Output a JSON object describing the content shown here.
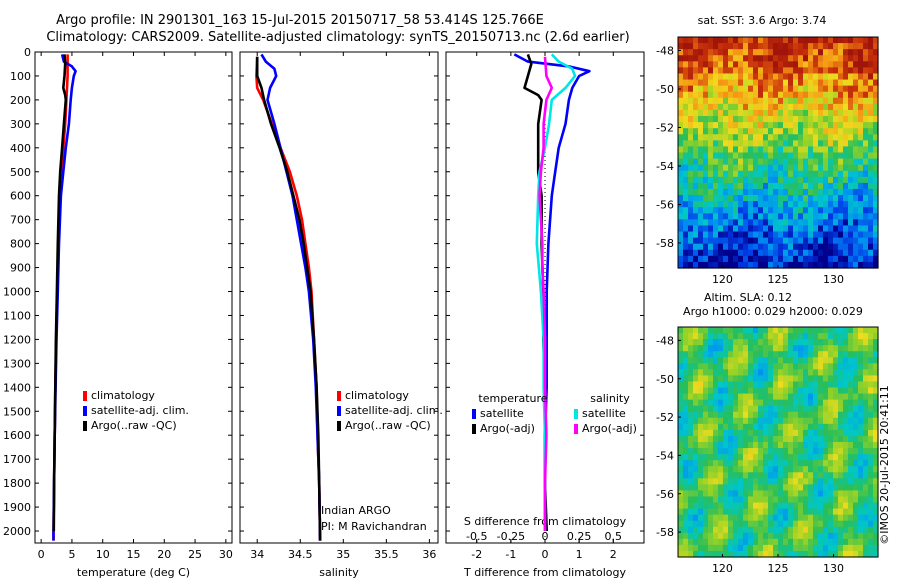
{
  "header": {
    "line1": "Argo profile: IN 2901301_163 15-Jul-2015 20150717_58 53.414S 125.766E",
    "line2": "Climatology: CARS2009. Satellite-adjusted climatology: synTS_20150713.nc (2.6d earlier)"
  },
  "colors": {
    "climatology": "#ff0000",
    "satellite": "#0000ff",
    "argo": "#000000",
    "salinity_satellite": "#00e6e6",
    "salinity_argo": "#ff00ff"
  },
  "chart_data": [
    {
      "type": "line",
      "panel": "temperature",
      "xlabel": "temperature (deg C)",
      "xlim": [
        -1,
        31
      ],
      "xticks": [
        "0",
        "5",
        "10",
        "15",
        "20",
        "25",
        "30"
      ],
      "ylim": [
        0,
        2050
      ],
      "yticks": [
        "0",
        "100",
        "200",
        "300",
        "400",
        "500",
        "600",
        "700",
        "800",
        "900",
        "1000",
        "1100",
        "1200",
        "1300",
        "1400",
        "1500",
        "1600",
        "1700",
        "1800",
        "1900",
        "2000"
      ],
      "legend": [
        "climatology",
        "satellite-adj. clim.",
        "Argo(..raw -QC)"
      ],
      "series": [
        {
          "name": "climatology",
          "points": [
            [
              4.3,
              10
            ],
            [
              4.3,
              50
            ],
            [
              4.3,
              100
            ],
            [
              4.2,
              150
            ],
            [
              4.1,
              200
            ],
            [
              3.9,
              300
            ],
            [
              3.6,
              400
            ],
            [
              3.3,
              500
            ],
            [
              3.0,
              600
            ],
            [
              2.8,
              800
            ],
            [
              2.6,
              1000
            ],
            [
              2.45,
              1200
            ],
            [
              2.3,
              1400
            ],
            [
              2.2,
              1600
            ],
            [
              2.1,
              1800
            ],
            [
              2.0,
              2000
            ],
            [
              2.0,
              2040
            ]
          ]
        },
        {
          "name": "satellite-adj. clim.",
          "points": [
            [
              3.4,
              10
            ],
            [
              3.7,
              40
            ],
            [
              5.0,
              60
            ],
            [
              5.6,
              80
            ],
            [
              5.3,
              100
            ],
            [
              5.0,
              150
            ],
            [
              4.8,
              200
            ],
            [
              4.5,
              300
            ],
            [
              4.0,
              400
            ],
            [
              3.6,
              500
            ],
            [
              3.2,
              600
            ],
            [
              2.9,
              800
            ],
            [
              2.7,
              1000
            ],
            [
              2.5,
              1200
            ],
            [
              2.35,
              1400
            ],
            [
              2.2,
              1600
            ],
            [
              2.1,
              1800
            ],
            [
              2.0,
              2000
            ],
            [
              2.0,
              2040
            ]
          ]
        },
        {
          "name": "Argo(..raw -QC)",
          "points": [
            [
              3.8,
              10
            ],
            [
              3.9,
              50
            ],
            [
              3.8,
              100
            ],
            [
              3.6,
              150
            ],
            [
              3.9,
              180
            ],
            [
              4.0,
              200
            ],
            [
              3.7,
              300
            ],
            [
              3.4,
              400
            ],
            [
              3.1,
              500
            ],
            [
              2.9,
              600
            ],
            [
              2.7,
              800
            ],
            [
              2.55,
              1000
            ],
            [
              2.4,
              1200
            ],
            [
              2.3,
              1400
            ],
            [
              2.2,
              1600
            ],
            [
              2.1,
              1800
            ],
            [
              2.05,
              2000
            ]
          ]
        }
      ]
    },
    {
      "type": "line",
      "panel": "salinity",
      "xlabel": "salinity",
      "xlim": [
        33.8,
        36.1
      ],
      "xticks": [
        "34",
        "34.5",
        "35",
        "35.5",
        "36"
      ],
      "ylim": [
        0,
        2050
      ],
      "legend": [
        "climatology",
        "satellite-adj. clim.",
        "Argo(..raw -QC)"
      ],
      "note": [
        "Indian ARGO",
        "PI: M Ravichandran"
      ],
      "series": [
        {
          "name": "climatology",
          "points": [
            [
              34.0,
              20
            ],
            [
              33.99,
              100
            ],
            [
              34.0,
              150
            ],
            [
              34.07,
              200
            ],
            [
              34.17,
              300
            ],
            [
              34.27,
              400
            ],
            [
              34.38,
              500
            ],
            [
              34.46,
              600
            ],
            [
              34.52,
              700
            ],
            [
              34.56,
              800
            ],
            [
              34.6,
              900
            ],
            [
              34.63,
              1000
            ],
            [
              34.66,
              1200
            ],
            [
              34.69,
              1400
            ],
            [
              34.7,
              1600
            ],
            [
              34.72,
              1800
            ],
            [
              34.73,
              2040
            ]
          ]
        },
        {
          "name": "satellite-adj. clim.",
          "points": [
            [
              34.05,
              10
            ],
            [
              34.1,
              40
            ],
            [
              34.2,
              70
            ],
            [
              34.22,
              100
            ],
            [
              34.15,
              150
            ],
            [
              34.12,
              200
            ],
            [
              34.2,
              300
            ],
            [
              34.27,
              400
            ],
            [
              34.34,
              500
            ],
            [
              34.41,
              600
            ],
            [
              34.46,
              700
            ],
            [
              34.51,
              800
            ],
            [
              34.56,
              900
            ],
            [
              34.6,
              1000
            ],
            [
              34.65,
              1200
            ],
            [
              34.68,
              1400
            ],
            [
              34.7,
              1600
            ],
            [
              34.72,
              1800
            ],
            [
              34.73,
              2040
            ]
          ]
        },
        {
          "name": "Argo(..raw -QC)",
          "points": [
            [
              34.0,
              20
            ],
            [
              34.0,
              100
            ],
            [
              34.05,
              150
            ],
            [
              34.08,
              200
            ],
            [
              34.16,
              300
            ],
            [
              34.26,
              400
            ],
            [
              34.35,
              500
            ],
            [
              34.42,
              600
            ],
            [
              34.49,
              700
            ],
            [
              34.54,
              800
            ],
            [
              34.58,
              900
            ],
            [
              34.62,
              1000
            ],
            [
              34.66,
              1200
            ],
            [
              34.69,
              1400
            ],
            [
              34.71,
              1600
            ],
            [
              34.72,
              1800
            ],
            [
              34.73,
              2040
            ]
          ]
        }
      ]
    },
    {
      "type": "line",
      "panel": "difference",
      "xlabel": "T difference from climatology",
      "x2label": "S difference from climatology",
      "xlim": [
        -2.9,
        2.9
      ],
      "xticks": [
        "-2",
        "-1",
        "0",
        "1",
        "2"
      ],
      "x2ticks": [
        "-0.5",
        "-0.25",
        "0",
        "0.25",
        "0.5"
      ],
      "ylim": [
        0,
        2050
      ],
      "legend_titles": [
        "temperature",
        "salinity"
      ],
      "legend": [
        "satellite",
        "Argo(-adj)",
        "satellite",
        "Argo(-adj)"
      ],
      "series": [
        {
          "name": "satellite",
          "group": "temperature",
          "points": [
            [
              -0.9,
              10
            ],
            [
              -0.5,
              40
            ],
            [
              0.7,
              60
            ],
            [
              1.3,
              80
            ],
            [
              1.0,
              100
            ],
            [
              0.8,
              150
            ],
            [
              0.7,
              200
            ],
            [
              0.6,
              300
            ],
            [
              0.4,
              400
            ],
            [
              0.3,
              500
            ],
            [
              0.2,
              600
            ],
            [
              0.1,
              800
            ],
            [
              0.05,
              1000
            ],
            [
              0.05,
              1200
            ],
            [
              0.05,
              1400
            ],
            [
              0.0,
              1600
            ],
            [
              0.0,
              1800
            ],
            [
              0.0,
              2000
            ]
          ]
        },
        {
          "name": "Argo(-adj)",
          "group": "temperature",
          "points": [
            [
              -0.5,
              10
            ],
            [
              -0.4,
              50
            ],
            [
              -0.5,
              100
            ],
            [
              -0.6,
              150
            ],
            [
              -0.2,
              180
            ],
            [
              -0.1,
              200
            ],
            [
              -0.2,
              300
            ],
            [
              -0.2,
              400
            ],
            [
              -0.2,
              500
            ],
            [
              -0.1,
              600
            ],
            [
              -0.1,
              800
            ],
            [
              -0.05,
              1000
            ],
            [
              -0.05,
              1200
            ],
            [
              0.0,
              1400
            ],
            [
              0.0,
              1600
            ],
            [
              0.0,
              1800
            ],
            [
              0.05,
              2000
            ]
          ]
        },
        {
          "name": "satellite",
          "group": "salinity",
          "points": [
            [
              0.05,
              10
            ],
            [
              0.1,
              40
            ],
            [
              0.2,
              70
            ],
            [
              0.22,
              100
            ],
            [
              0.15,
              150
            ],
            [
              0.05,
              200
            ],
            [
              0.03,
              300
            ],
            [
              0.0,
              400
            ],
            [
              -0.04,
              500
            ],
            [
              -0.05,
              600
            ],
            [
              -0.06,
              800
            ],
            [
              -0.03,
              1000
            ],
            [
              -0.01,
              1200
            ],
            [
              -0.01,
              1400
            ],
            [
              0.0,
              1600
            ],
            [
              0.0,
              1800
            ],
            [
              0.0,
              2000
            ]
          ]
        },
        {
          "name": "Argo(-adj)",
          "group": "salinity",
          "points": [
            [
              0.0,
              20
            ],
            [
              0.01,
              100
            ],
            [
              0.05,
              150
            ],
            [
              0.01,
              200
            ],
            [
              -0.01,
              300
            ],
            [
              -0.01,
              400
            ],
            [
              -0.03,
              500
            ],
            [
              -0.04,
              600
            ],
            [
              -0.03,
              700
            ],
            [
              -0.02,
              800
            ],
            [
              -0.02,
              900
            ],
            [
              -0.01,
              1000
            ],
            [
              0.0,
              1200
            ],
            [
              0.0,
              1400
            ],
            [
              0.01,
              1600
            ],
            [
              0.0,
              1800
            ],
            [
              0.0,
              2000
            ]
          ]
        }
      ]
    },
    {
      "type": "heatmap",
      "panel": "sst-map",
      "title": "sat. SST: 3.6  Argo: 3.74",
      "xticks": [
        "120",
        "125",
        "130"
      ],
      "yticks": [
        "-48",
        "-50",
        "-52",
        "-54",
        "-56",
        "-58"
      ]
    },
    {
      "type": "heatmap",
      "panel": "sla-map",
      "title_lines": [
        "Altim. SLA: 0.12",
        "Argo h1000: 0.029 h2000: 0.029"
      ],
      "xticks": [
        "120",
        "125",
        "130"
      ],
      "yticks": [
        "-48",
        "-50",
        "-52",
        "-54",
        "-56",
        "-58"
      ]
    }
  ],
  "footer": {
    "stamp": "©IMOS 20-Jul-2015 20:41:11"
  }
}
